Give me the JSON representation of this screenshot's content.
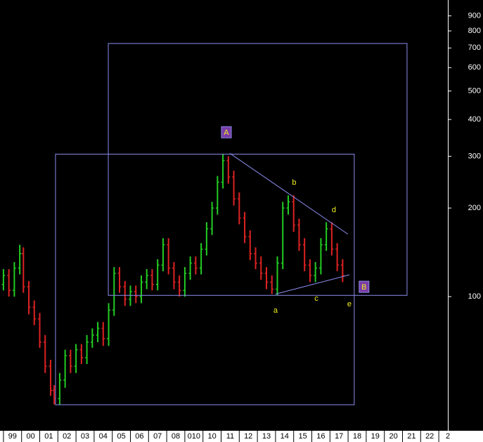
{
  "chart_data": {
    "type": "ohlc",
    "log_y": true,
    "up_color": "#22cc22",
    "down_color": "#dd2222",
    "annotation_color": "#8c8cf0",
    "label_color": "#f0f020",
    "xlim": [
      1998.81,
      2023.5
    ],
    "ylim": [
      35,
      1019
    ],
    "yticks": [
      100,
      200,
      300,
      400,
      500,
      600,
      700,
      800,
      900
    ],
    "xticks": [
      {
        "value": 1999,
        "label": "99"
      },
      {
        "value": 2000,
        "label": "00"
      },
      {
        "value": 2001,
        "label": "01"
      },
      {
        "value": 2002,
        "label": "02"
      },
      {
        "value": 2003,
        "label": "03"
      },
      {
        "value": 2004,
        "label": "04"
      },
      {
        "value": 2005,
        "label": "05"
      },
      {
        "value": 2006,
        "label": "06"
      },
      {
        "value": 2007,
        "label": "07"
      },
      {
        "value": 2008,
        "label": "08"
      },
      {
        "value": 2009,
        "label": "010"
      },
      {
        "value": 2010,
        "label": "10"
      },
      {
        "value": 2011,
        "label": "11"
      },
      {
        "value": 2012,
        "label": "12"
      },
      {
        "value": 2013,
        "label": "13"
      },
      {
        "value": 2014,
        "label": "14"
      },
      {
        "value": 2015,
        "label": "15"
      },
      {
        "value": 2016,
        "label": "16"
      },
      {
        "value": 2017,
        "label": "17"
      },
      {
        "value": 2018,
        "label": "18"
      },
      {
        "value": 2019,
        "label": "19"
      },
      {
        "value": 2020,
        "label": "20"
      },
      {
        "value": 2021,
        "label": "21"
      },
      {
        "value": 2022,
        "label": "22"
      },
      {
        "value": 2023,
        "label": "2"
      }
    ],
    "x": [
      1999.0,
      1999.3,
      1999.6,
      1999.9,
      2000.1,
      2000.4,
      2000.7,
      2001.0,
      2001.3,
      2001.6,
      2001.8,
      2002.1,
      2002.4,
      2002.7,
      2003.0,
      2003.3,
      2003.6,
      2003.9,
      2004.2,
      2004.5,
      2004.8,
      2005.1,
      2005.4,
      2005.7,
      2006.0,
      2006.3,
      2006.6,
      2006.9,
      2007.2,
      2007.5,
      2007.8,
      2008.1,
      2008.4,
      2008.7,
      2009.0,
      2009.3,
      2009.6,
      2009.9,
      2010.2,
      2010.5,
      2010.8,
      2011.1,
      2011.4,
      2011.7,
      2012.0,
      2012.3,
      2012.6,
      2012.9,
      2013.2,
      2013.5,
      2013.8,
      2014.1,
      2014.4,
      2014.7,
      2015.0,
      2015.3,
      2015.6,
      2015.9,
      2016.2,
      2016.5,
      2016.8,
      2017.1,
      2017.4,
      2017.7
    ],
    "open": [
      110,
      118,
      105,
      125,
      140,
      108,
      92,
      84,
      70,
      58,
      48,
      45,
      52,
      63,
      58,
      66,
      62,
      70,
      74,
      78,
      72,
      90,
      120,
      108,
      98,
      104,
      100,
      112,
      118,
      110,
      128,
      150,
      125,
      112,
      105,
      120,
      130,
      125,
      145,
      170,
      200,
      245,
      290,
      255,
      215,
      185,
      160,
      140,
      130,
      120,
      112,
      106,
      130,
      200,
      210,
      175,
      150,
      128,
      118,
      125,
      150,
      170,
      145,
      128
    ],
    "high": [
      124,
      124,
      131,
      150,
      147,
      113,
      97,
      88,
      74,
      61,
      50,
      55,
      66,
      66,
      69,
      69,
      74,
      78,
      82,
      82,
      95,
      126,
      126,
      113,
      109,
      109,
      118,
      124,
      124,
      134,
      158,
      158,
      131,
      118,
      126,
      137,
      137,
      152,
      179,
      210,
      257,
      305,
      300,
      268,
      226,
      194,
      168,
      147,
      137,
      126,
      118,
      137,
      210,
      221,
      221,
      184,
      158,
      134,
      131,
      158,
      179,
      179,
      152,
      134
    ],
    "low": [
      105,
      100,
      100,
      119,
      103,
      87,
      80,
      67,
      55,
      46,
      43,
      43,
      49,
      55,
      55,
      59,
      59,
      67,
      70,
      68,
      68,
      86,
      103,
      93,
      93,
      95,
      95,
      106,
      105,
      105,
      122,
      119,
      106,
      100,
      100,
      114,
      119,
      119,
      138,
      162,
      190,
      233,
      242,
      204,
      176,
      152,
      133,
      124,
      114,
      106,
      102,
      101,
      124,
      190,
      166,
      143,
      122,
      112,
      112,
      119,
      143,
      138,
      122,
      112
    ],
    "close": [
      118,
      105,
      125,
      140,
      108,
      92,
      84,
      70,
      58,
      48,
      45,
      52,
      63,
      58,
      66,
      62,
      70,
      74,
      78,
      72,
      90,
      120,
      108,
      98,
      104,
      100,
      112,
      118,
      110,
      128,
      150,
      125,
      112,
      105,
      120,
      130,
      125,
      145,
      170,
      200,
      245,
      290,
      255,
      215,
      185,
      160,
      140,
      130,
      120,
      112,
      106,
      130,
      200,
      210,
      175,
      150,
      128,
      118,
      125,
      150,
      170,
      145,
      128,
      118
    ],
    "boxes": [
      {
        "x": [
          2004.78,
          2021.25
        ],
        "y": [
          101,
          725
        ]
      },
      {
        "x": [
          2001.87,
          2018.34
        ],
        "y": [
          42.9,
          305
        ]
      }
    ],
    "trendlines": [
      {
        "x": [
          2011.48,
          2017.99
        ],
        "y": [
          307,
          163
        ]
      },
      {
        "x": [
          2014.0,
          2018.07
        ],
        "y": [
          102,
          118.6
        ]
      }
    ],
    "labels": [
      {
        "text": "A",
        "x": 2011.29,
        "y": 362,
        "boxed": true
      },
      {
        "text": "b",
        "x": 2015.03,
        "y": 245,
        "boxed": false
      },
      {
        "text": "d",
        "x": 2017.22,
        "y": 198,
        "boxed": false
      },
      {
        "text": "a",
        "x": 2014.0,
        "y": 90,
        "boxed": false
      },
      {
        "text": "c",
        "x": 2016.25,
        "y": 99,
        "boxed": false
      },
      {
        "text": "e",
        "x": 2018.07,
        "y": 94.6,
        "boxed": false
      },
      {
        "text": "B",
        "x": 2018.88,
        "y": 108,
        "boxed": true
      }
    ]
  }
}
